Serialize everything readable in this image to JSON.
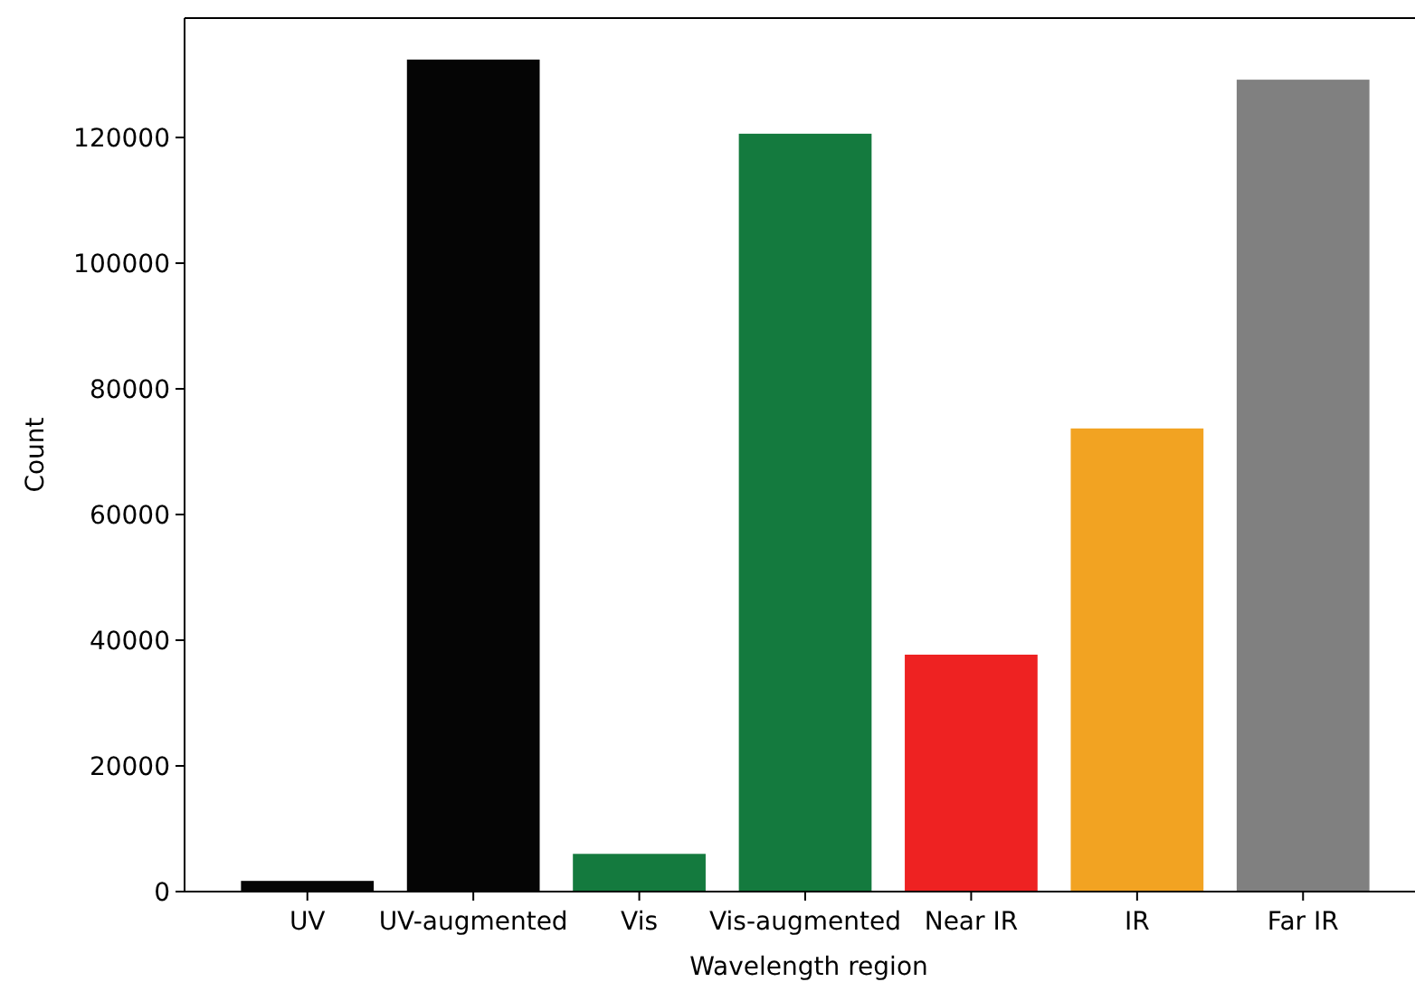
{
  "chart_data": {
    "type": "bar",
    "xlabel": "Wavelength region",
    "ylabel": "Count",
    "categories": [
      "UV",
      "UV-augmented",
      "Vis",
      "Vis-augmented",
      "Near IR",
      "IR",
      "Far IR"
    ],
    "values": [
      1700,
      132400,
      6000,
      120600,
      37700,
      73700,
      129200
    ],
    "colors": [
      "#050505",
      "#050505",
      "#147a3e",
      "#147a3e",
      "#ee2222",
      "#f2a322",
      "#808080"
    ],
    "ylim": [
      0,
      139000
    ],
    "yticks": [
      0,
      20000,
      40000,
      60000,
      80000,
      100000,
      120000
    ],
    "grid": false
  }
}
